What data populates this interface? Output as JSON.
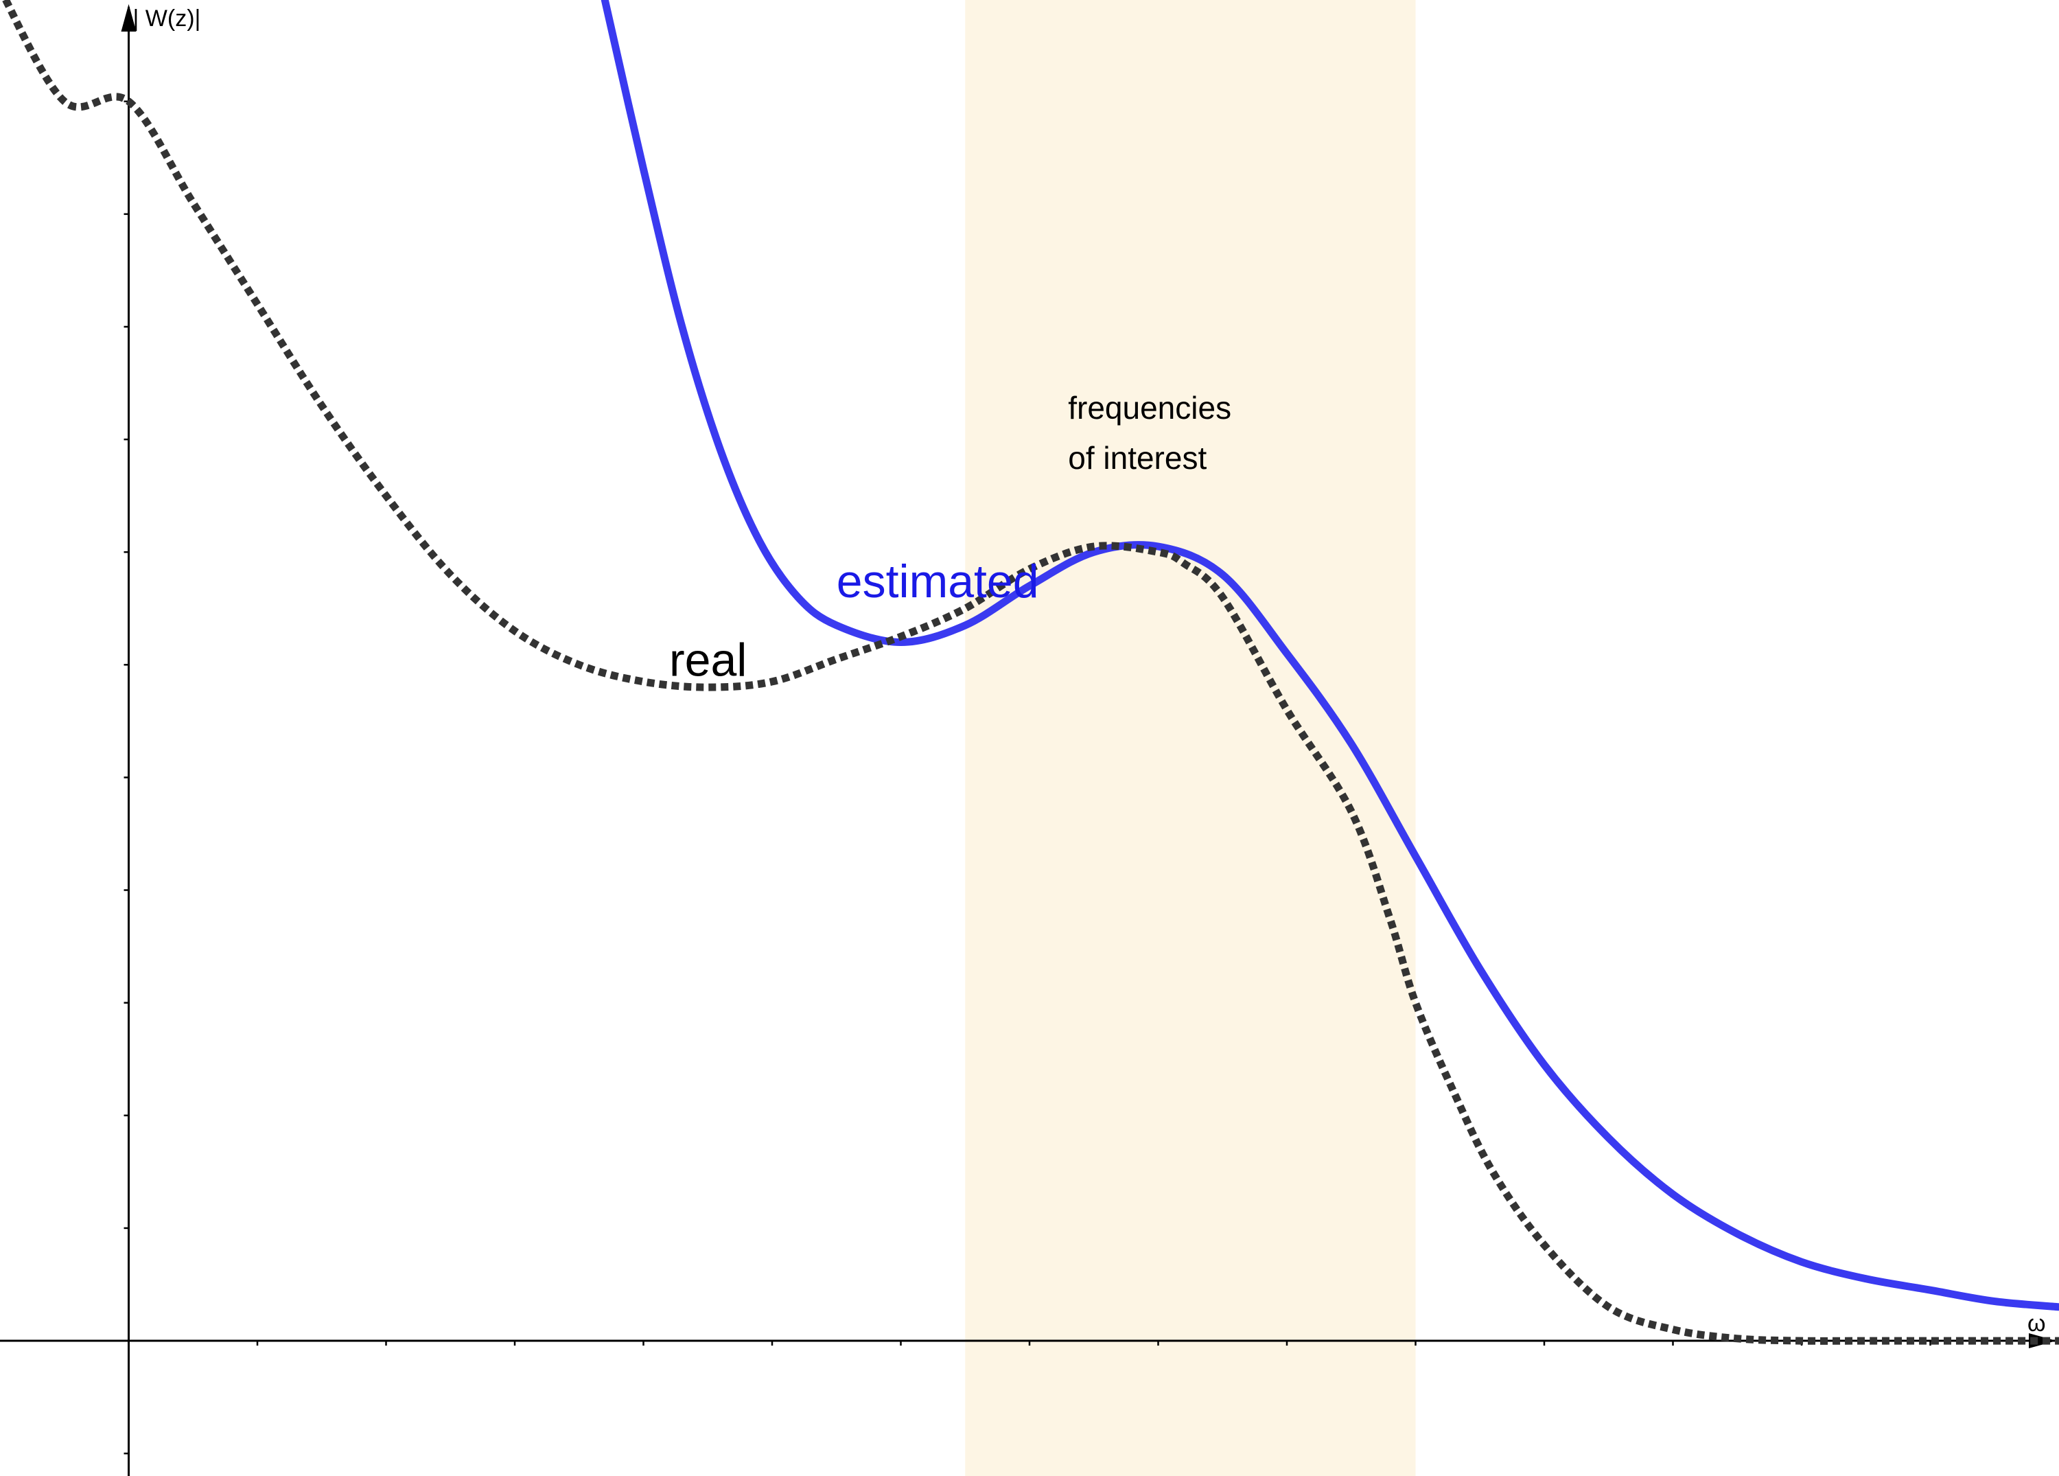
{
  "chart_data": {
    "type": "line",
    "title": "",
    "xlabel": "ω",
    "ylabel": "| W(z)|",
    "xlim": [
      -1,
      15
    ],
    "ylim": [
      -1.2,
      11.9
    ],
    "grid": false,
    "x_ticks": [
      1,
      2,
      3,
      4,
      5,
      6,
      7,
      8,
      9,
      10,
      11,
      12,
      13,
      14
    ],
    "y_ticks": [
      1,
      2,
      3,
      4,
      5,
      6,
      7,
      8,
      9,
      10,
      11,
      -1
    ],
    "series": [
      {
        "name": "real",
        "style": "dotted",
        "color": "#333333",
        "label_at": [
          4.2,
          5.9
        ],
        "x": [
          -1,
          -0.5,
          0,
          0.5,
          1,
          1.5,
          2,
          2.5,
          3,
          3.5,
          4,
          4.5,
          5,
          5.5,
          6,
          6.5,
          7,
          7.5,
          8,
          8.2,
          8.5,
          9,
          9.5,
          9.8,
          10,
          10.3,
          10.6,
          11,
          11.5,
          12,
          12.5,
          13,
          13.5,
          14,
          15
        ],
        "y": [
          12.0,
          11.0,
          11.0,
          10.1,
          9.2,
          8.3,
          7.5,
          6.8,
          6.3,
          6.0,
          5.85,
          5.8,
          5.85,
          6.05,
          6.25,
          6.5,
          6.85,
          7.05,
          7.0,
          6.9,
          6.6,
          5.6,
          4.7,
          3.75,
          3.0,
          2.2,
          1.5,
          0.85,
          0.3,
          0.1,
          0.02,
          0.0,
          0.0,
          0.0,
          0.0
        ]
      },
      {
        "name": "estimated",
        "style": "solid",
        "color": "#3a3af0",
        "label_at": [
          5.5,
          6.6
        ],
        "x": [
          3.7,
          4.0,
          4.3,
          4.6,
          4.9,
          5.2,
          5.5,
          6.0,
          6.5,
          7.0,
          7.5,
          8.0,
          8.5,
          9.0,
          9.5,
          10.0,
          10.5,
          11.0,
          11.5,
          12.0,
          12.5,
          13.0,
          13.5,
          14.0,
          14.5,
          15.0
        ],
        "y": [
          11.9,
          10.4,
          9.0,
          7.9,
          7.1,
          6.6,
          6.35,
          6.2,
          6.35,
          6.7,
          7.0,
          7.05,
          6.8,
          6.1,
          5.3,
          4.3,
          3.3,
          2.45,
          1.8,
          1.3,
          0.95,
          0.7,
          0.55,
          0.45,
          0.35,
          0.3
        ]
      }
    ],
    "highlight_band": {
      "x_range": [
        6.5,
        10
      ],
      "color": "#fdf5e4",
      "label_lines": [
        "frequencies",
        "of interest"
      ]
    }
  }
}
